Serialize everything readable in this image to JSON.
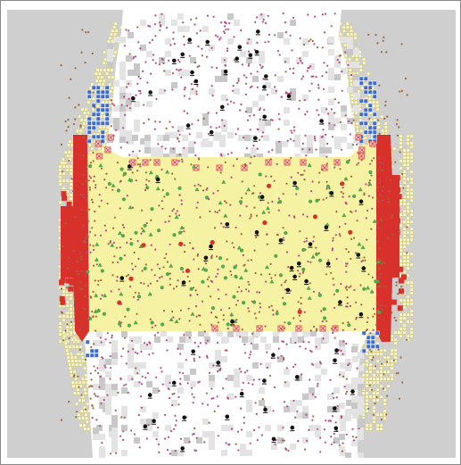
{
  "view": {
    "background_color": "#cfcfcf",
    "frame_color": "#8a8a8a",
    "colors": {
      "open_floor": "#ffffff",
      "floor_shade": "#e3e3e3",
      "floor_dark_shade": "#c8c8c8",
      "core_zone": "#f6f2a4",
      "hot_wall": "#d8302a",
      "wall_marker": "#e03a38",
      "cool_edge": "#3d6bd0",
      "outer_ring_cell": "#fbfae8",
      "outer_ring_border": "#d9d16c",
      "particle_magenta": "#b34a86",
      "particle_brown": "#9a6a3c",
      "agent_green": "#52a84a",
      "agent_red": "#d8302a",
      "agent_black": "#111111"
    },
    "agent_counts": {
      "black_markers": 70,
      "green_markers": 140,
      "red_markers": 12
    }
  }
}
